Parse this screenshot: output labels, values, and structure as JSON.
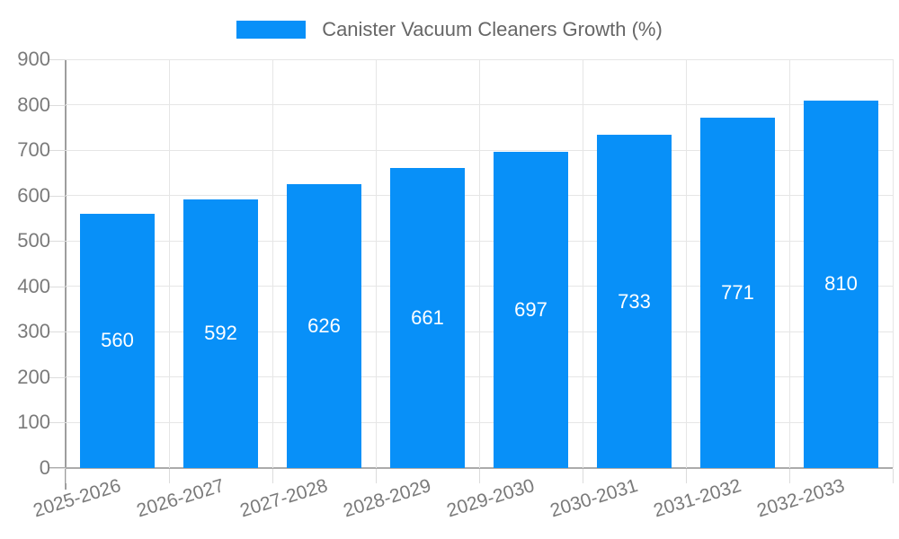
{
  "legend": {
    "label": "Canister Vacuum Cleaners Growth (%)",
    "swatch_color": "#0890f8"
  },
  "chart_data": {
    "type": "bar",
    "title": "Canister Vacuum Cleaners Growth (%)",
    "categories": [
      "2025-2026",
      "2026-2027",
      "2027-2028",
      "2028-2029",
      "2029-2030",
      "2030-2031",
      "2031-2032",
      "2032-2033"
    ],
    "values": [
      560,
      592,
      626,
      661,
      697,
      733,
      771,
      810
    ],
    "series": [
      {
        "name": "Canister Vacuum Cleaners Growth (%)",
        "values": [
          560,
          592,
          626,
          661,
          697,
          733,
          771,
          810
        ]
      }
    ],
    "xlabel": "",
    "ylabel": "",
    "ylim": [
      0,
      900
    ],
    "y_ticks": [
      0,
      100,
      200,
      300,
      400,
      500,
      600,
      700,
      800,
      900
    ],
    "grid": true,
    "legend_position": "top",
    "x_label_rotation_deg": -17,
    "colors": {
      "bar": "#0890f8",
      "value_label": "#ffffff",
      "axis_text": "#7a7a7a",
      "legend_text": "#666666",
      "gridline": "#e6e6e6",
      "axis_line": "#9e9e9e"
    }
  }
}
